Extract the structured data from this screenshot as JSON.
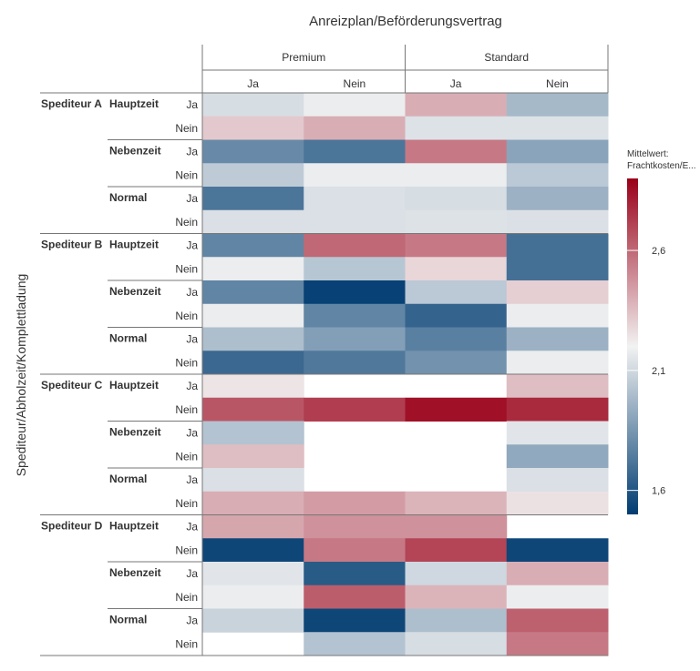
{
  "chart_data": {
    "type": "heatmap",
    "title": "Anreizplan/Beförderungsvertrag",
    "ylabel": "Spediteur/Abholzeit/Komplettladung",
    "columns": {
      "groups": [
        "Premium",
        "Standard"
      ],
      "subgroups": [
        "Ja",
        "Nein"
      ]
    },
    "rows": {
      "carriers": [
        "Spediteur A",
        "Spediteur B",
        "Spediteur C",
        "Spediteur D"
      ],
      "pickup_times": [
        "Hauptzeit",
        "Nebenzeit",
        "Normal"
      ],
      "full_load": [
        "Ja",
        "Nein"
      ]
    },
    "column_order": [
      "Premium|Ja",
      "Premium|Nein",
      "Standard|Ja",
      "Standard|Nein"
    ],
    "values": [
      [
        2.12,
        2.18,
        2.4,
        1.98
      ],
      [
        2.32,
        2.4,
        2.14,
        2.14
      ],
      [
        1.8,
        1.72,
        2.55,
        1.9
      ],
      [
        2.05,
        2.18,
        2.18,
        2.04
      ],
      [
        1.72,
        2.13,
        2.12,
        1.95
      ],
      [
        2.13,
        2.13,
        2.14,
        2.13
      ],
      [
        1.78,
        2.6,
        2.55,
        1.7
      ],
      [
        2.18,
        2.03,
        2.28,
        1.7
      ],
      [
        1.78,
        1.52,
        2.04,
        2.3
      ],
      [
        2.18,
        1.78,
        1.65,
        2.18
      ],
      [
        2.0,
        1.88,
        1.76,
        1.95
      ],
      [
        1.67,
        1.73,
        1.83,
        2.18
      ],
      [
        2.24,
        null,
        null,
        2.35
      ],
      [
        2.65,
        2.72,
        2.85,
        2.78
      ],
      [
        2.02,
        null,
        null,
        2.15
      ],
      [
        2.35,
        null,
        null,
        1.92
      ],
      [
        2.13,
        null,
        null,
        2.13
      ],
      [
        2.4,
        2.45,
        2.38,
        2.25
      ],
      [
        2.42,
        2.48,
        2.48,
        null
      ],
      [
        1.54,
        2.55,
        2.7,
        1.54
      ],
      [
        2.15,
        1.62,
        2.1,
        2.4
      ],
      [
        2.18,
        2.63,
        2.38,
        2.18
      ],
      [
        2.08,
        1.54,
        2.0,
        2.62
      ],
      [
        null,
        2.02,
        2.12,
        2.55
      ]
    ],
    "legend": {
      "title": "Mittelwert: Frachtkosten/E...",
      "ticks": [
        2.6,
        2.1,
        1.6
      ],
      "tick_labels": [
        "2,6",
        "2,1",
        "1,6"
      ],
      "range": [
        1.5,
        2.9
      ],
      "colors": {
        "low": "#003c71",
        "mid": "#f2f2f2",
        "high": "#9a0018"
      }
    }
  }
}
